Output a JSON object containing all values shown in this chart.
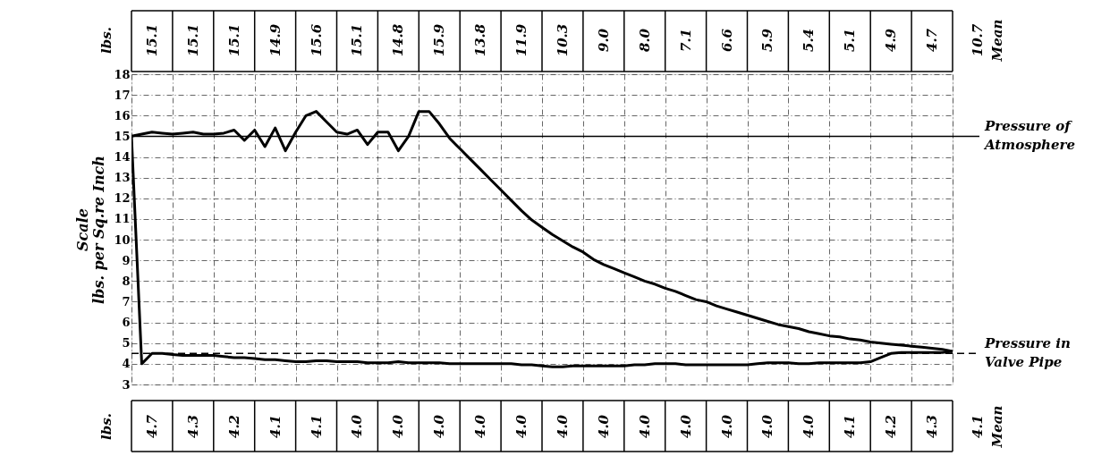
{
  "chart_data": {
    "type": "line",
    "ylabel": "Scale\nlbs. per Sq.re Inch",
    "categories": [
      null,
      null,
      null,
      null,
      null,
      null,
      null,
      null,
      null,
      null,
      null,
      null,
      null,
      null,
      null,
      null,
      null,
      null,
      null,
      null,
      null,
      null,
      null,
      null,
      null,
      null,
      null,
      null,
      null,
      null,
      null,
      null,
      null,
      null,
      null,
      null,
      null,
      null,
      null,
      null,
      null,
      null,
      null,
      null,
      null,
      null,
      null,
      null,
      null,
      null,
      null,
      null,
      null,
      null,
      null,
      null,
      null,
      null,
      null,
      null,
      null,
      null,
      null,
      null,
      null,
      null,
      null,
      null,
      null,
      null,
      null,
      null,
      null,
      null,
      null,
      null,
      null,
      null,
      null,
      null,
      null
    ],
    "ylim": [
      3,
      18
    ],
    "yticks": [
      3,
      4,
      5,
      6,
      7,
      8,
      9,
      10,
      11,
      12,
      13,
      14,
      15,
      16,
      17,
      18
    ],
    "tick_labels": "y",
    "grid": true,
    "line_style": "solid",
    "series": [
      {
        "color": "#000000",
        "values": [
          15,
          15.1,
          15.2,
          15.15,
          15.1,
          15.15,
          15.2,
          15.1,
          15.1,
          15.15,
          15.3,
          14.8,
          15.3,
          14.5,
          15.4,
          14.3,
          15.2,
          16.0,
          16.2,
          15.7,
          15.2,
          15.1,
          15.3,
          14.6,
          15.2,
          15.2,
          14.3,
          15.0,
          16.2,
          16.2,
          15.6,
          14.9,
          14.4,
          13.9,
          13.4,
          12.9,
          12.4,
          11.9,
          11.4,
          10.95,
          10.6,
          10.25,
          9.95,
          9.65,
          9.4,
          9.05,
          8.8,
          8.6,
          8.4,
          8.2,
          8.0,
          7.85,
          7.65,
          7.5,
          7.3,
          7.1,
          7.0,
          6.8,
          6.65,
          6.5,
          6.35,
          6.2,
          6.05,
          5.9,
          5.8,
          5.7,
          5.55,
          5.45,
          5.35,
          5.3,
          5.2,
          5.15,
          5.05,
          5.0,
          4.95,
          4.9,
          4.85,
          4.8,
          4.75,
          4.7,
          4.6
        ]
      },
      {
        "color": "#000000",
        "values": [
          15,
          4.0,
          4.5,
          4.5,
          4.45,
          4.4,
          4.4,
          4.4,
          4.4,
          4.35,
          4.3,
          4.3,
          4.25,
          4.2,
          4.2,
          4.15,
          4.1,
          4.1,
          4.15,
          4.15,
          4.1,
          4.1,
          4.1,
          4.05,
          4.05,
          4.05,
          4.1,
          4.05,
          4.05,
          4.05,
          4.05,
          4.0,
          4.0,
          4.0,
          4.0,
          4.0,
          4.0,
          4.0,
          3.95,
          3.95,
          3.9,
          3.85,
          3.85,
          3.9,
          3.9,
          3.9,
          3.9,
          3.9,
          3.9,
          3.95,
          3.95,
          4.0,
          4.0,
          4.0,
          3.95,
          3.95,
          3.95,
          3.95,
          3.95,
          3.95,
          3.95,
          4.0,
          4.05,
          4.05,
          4.05,
          4.0,
          4.0,
          4.05,
          4.05,
          4.05,
          4.05,
          4.05,
          4.1,
          4.3,
          4.5,
          4.55,
          4.55,
          4.55,
          4.55,
          4.55,
          4.6
        ]
      }
    ],
    "ref_lines": [
      {
        "axis": "y",
        "value": 15,
        "label": "Pressure of\nAtmosphere",
        "line_style": "solid"
      },
      {
        "axis": "y",
        "value": 4.5,
        "label": "Pressure in\nValve Pipe",
        "line_style": "dashed"
      }
    ],
    "annotations": [
      "lbs.",
      "15.1",
      "15.1",
      "15.1",
      "14.9",
      "15.6",
      "15.1",
      "14.8",
      "15.9",
      "13.8",
      "11.9",
      "10.3",
      "9.0",
      "8.0",
      "7.1",
      "6.6",
      "5.9",
      "5.4",
      "5.1",
      "4.9",
      "4.7",
      "10.7",
      "Mean",
      "lbs.",
      "4.7",
      "4.3",
      "4.2",
      "4.1",
      "4.1",
      "4.0",
      "4.0",
      "4.0",
      "4.0",
      "4.0",
      "4.0",
      "4.0",
      "4.0",
      "4.0",
      "4.0",
      "4.0",
      "4.0",
      "4.1",
      "4.2",
      "4.3",
      "4.1",
      "Mean"
    ]
  }
}
